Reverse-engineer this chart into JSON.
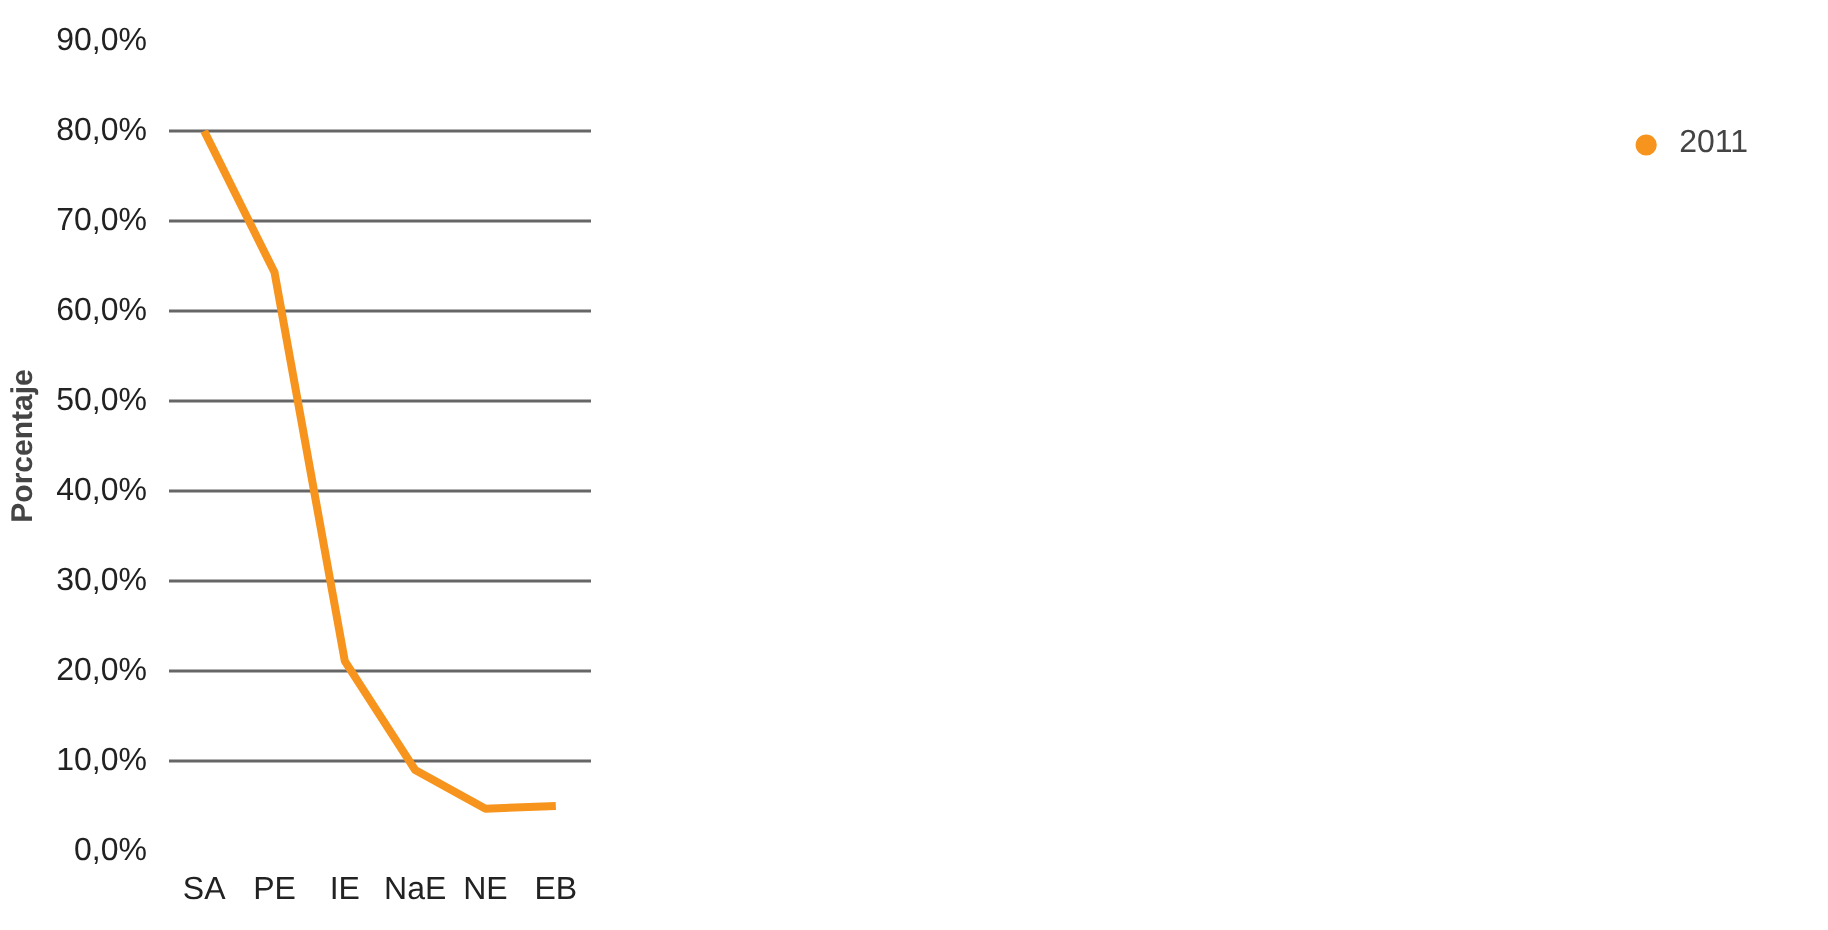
{
  "chart_data": {
    "type": "line",
    "ylabel": "Porcentaje",
    "categories": [
      "SA",
      "PE",
      "IE",
      "NaE",
      "NE",
      "EB"
    ],
    "series": [
      {
        "name": "2011",
        "color": "#f7941d",
        "values": [
          80.0,
          64.3,
          21.1,
          9.0,
          4.7,
          5.0
        ]
      }
    ],
    "ylim": [
      0,
      90
    ],
    "yticks": [
      {
        "value": 0,
        "label": "0,0%"
      },
      {
        "value": 10,
        "label": "10,0%"
      },
      {
        "value": 20,
        "label": "20,0%"
      },
      {
        "value": 30,
        "label": "30,0%"
      },
      {
        "value": 40,
        "label": "40,0%"
      },
      {
        "value": 50,
        "label": "50,0%"
      },
      {
        "value": 60,
        "label": "60,0%"
      },
      {
        "value": 70,
        "label": "70,0%"
      },
      {
        "value": 80,
        "label": "80,0%"
      },
      {
        "value": 90,
        "label": "90,0%"
      }
    ],
    "grid": "y",
    "legend": "right",
    "line_style": "solid",
    "marker": "none"
  }
}
